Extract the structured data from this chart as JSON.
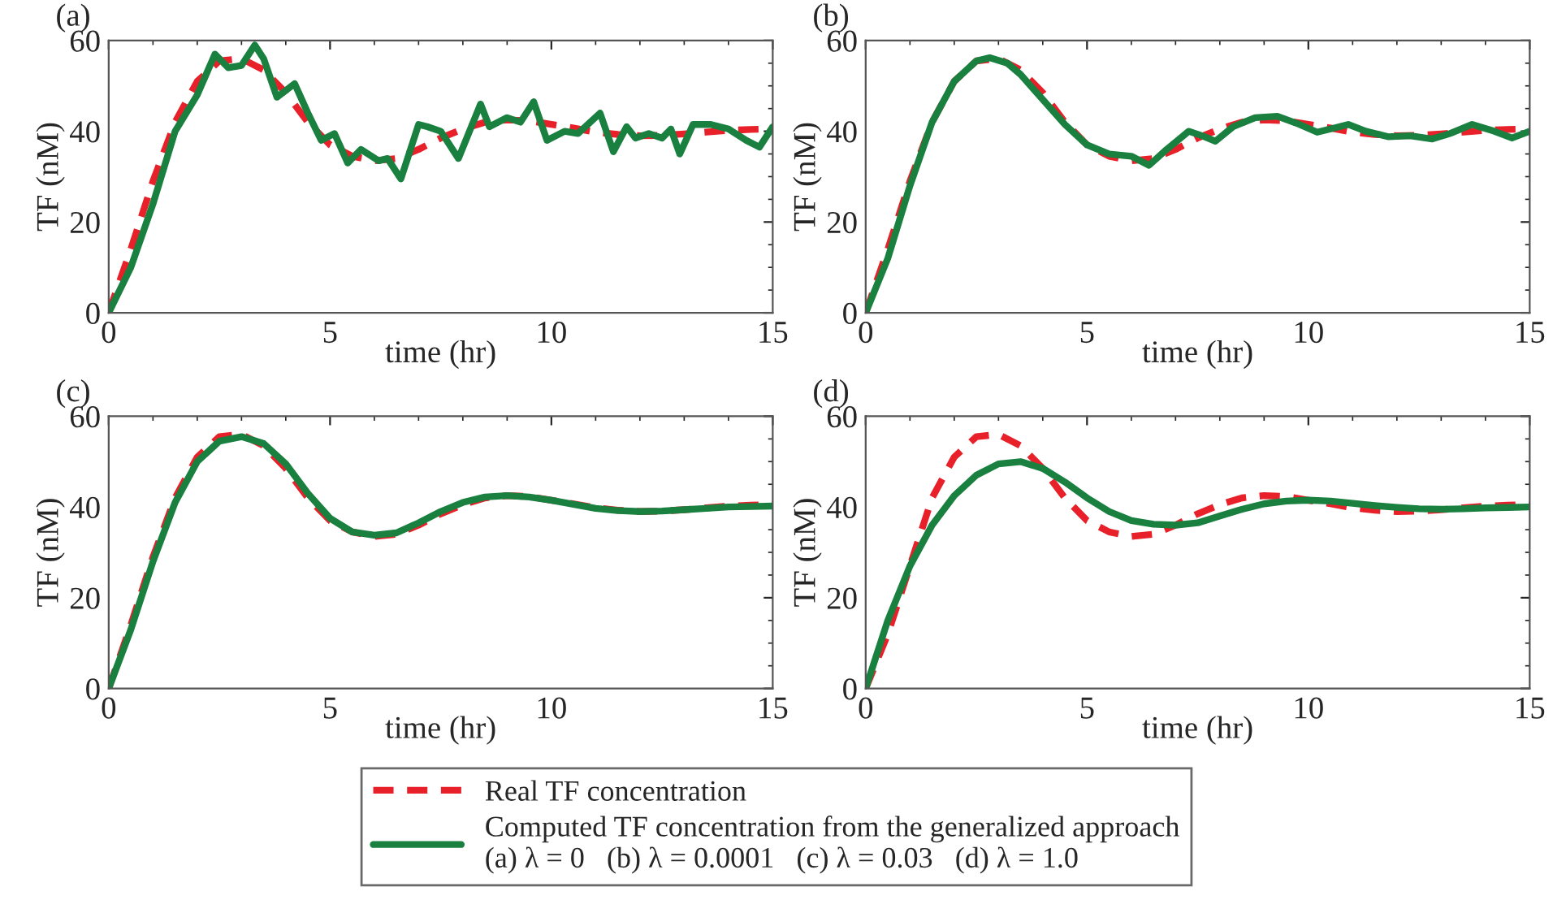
{
  "chart_data": [
    {
      "type": "line",
      "title": "(a)",
      "xlabel": "time (hr)",
      "ylabel": "TF (nM)",
      "xlim": [
        0,
        15
      ],
      "ylim": [
        0,
        60
      ],
      "xticks": [
        0,
        5,
        10,
        15
      ],
      "yticks": [
        0,
        20,
        40,
        60
      ],
      "grid": false,
      "legend": "bottom",
      "series": [
        {
          "name": "Real TF concentration",
          "color": "#e8202a",
          "line_style": "dashed",
          "x": [
            0,
            0.5,
            1,
            1.5,
            2,
            2.5,
            3,
            3.5,
            4,
            4.5,
            5,
            5.5,
            6,
            6.5,
            7,
            7.5,
            8,
            8.5,
            9,
            9.5,
            10,
            10.5,
            11,
            11.5,
            12,
            12.5,
            13,
            13.5,
            14,
            14.5,
            15
          ],
          "values": [
            0,
            14,
            29,
            42,
            51,
            55.5,
            56,
            53.5,
            48.5,
            42,
            37,
            34.5,
            33.5,
            34,
            36,
            38.5,
            40.5,
            42,
            42.5,
            42.3,
            41.5,
            40.7,
            39.8,
            39.3,
            39,
            39.1,
            39.4,
            39.8,
            40.2,
            40.4,
            40.5
          ]
        },
        {
          "name": "Computed TF concentration from the generalized approach\n(a) λ = 0   (b) λ = 0.0001   (c) λ = 0.03   (d) λ = 1.0",
          "color": "#1a8040",
          "line_style": "solid",
          "x": [
            0,
            0.5,
            1,
            1.5,
            2,
            2.4,
            2.7,
            3.0,
            3.3,
            3.5,
            3.8,
            4.2,
            4.5,
            4.8,
            5.1,
            5.4,
            5.7,
            6.1,
            6.3,
            6.6,
            7.0,
            7.2,
            7.5,
            7.9,
            8.4,
            8.6,
            9.0,
            9.3,
            9.6,
            9.9,
            10.3,
            10.6,
            11.1,
            11.4,
            11.7,
            11.9,
            12.2,
            12.5,
            12.7,
            12.9,
            13.2,
            13.6,
            14.0,
            14.4,
            14.7,
            15
          ],
          "values": [
            0,
            10,
            24,
            40,
            48,
            57,
            54,
            54.5,
            59,
            56,
            47.5,
            50.5,
            44,
            38,
            39.5,
            33,
            36,
            33.5,
            34,
            29.5,
            41.5,
            41,
            40,
            34,
            46,
            41,
            43,
            42,
            46.5,
            38,
            40,
            39.5,
            44,
            35.5,
            41,
            38.5,
            39.5,
            38.5,
            40.5,
            35,
            41.5,
            41.5,
            40.5,
            38,
            36.5,
            41
          ]
        }
      ]
    },
    {
      "type": "line",
      "title": "(b)",
      "xlabel": "time (hr)",
      "ylabel": "TF (nM)",
      "xlim": [
        0,
        15
      ],
      "ylim": [
        0,
        60
      ],
      "xticks": [
        0,
        5,
        10,
        15
      ],
      "yticks": [
        0,
        20,
        40,
        60
      ],
      "grid": false,
      "series": [
        {
          "color": "#e8202a",
          "line_style": "dashed",
          "x": [
            0,
            0.5,
            1,
            1.5,
            2,
            2.5,
            3,
            3.5,
            4,
            4.5,
            5,
            5.5,
            6,
            6.5,
            7,
            7.5,
            8,
            8.5,
            9,
            9.5,
            10,
            10.5,
            11,
            11.5,
            12,
            12.5,
            13,
            13.5,
            14,
            14.5,
            15
          ],
          "values": [
            0,
            14,
            29,
            42,
            51,
            55.5,
            56,
            53.5,
            48.5,
            42,
            37,
            34.5,
            33.5,
            34,
            36,
            38.5,
            40.5,
            42,
            42.5,
            42.3,
            41.5,
            40.7,
            39.8,
            39.3,
            39,
            39.1,
            39.4,
            39.8,
            40.2,
            40.4,
            40.5
          ]
        },
        {
          "color": "#1a8040",
          "line_style": "solid",
          "x": [
            0,
            0.5,
            1,
            1.5,
            2,
            2.5,
            2.8,
            3.2,
            3.5,
            4,
            4.5,
            5,
            5.5,
            6,
            6.4,
            6.8,
            7.3,
            7.6,
            7.9,
            8.3,
            8.8,
            9.3,
            9.8,
            10.2,
            10.5,
            10.9,
            11.3,
            11.8,
            12.3,
            12.8,
            13.2,
            13.7,
            14.2,
            14.6,
            15
          ],
          "values": [
            0,
            12,
            28,
            42,
            51,
            55.5,
            56.2,
            55,
            52.5,
            47,
            41.5,
            37,
            35,
            34.5,
            32.5,
            36,
            40,
            39,
            37.8,
            41,
            43,
            43.3,
            41.5,
            39.8,
            40.5,
            41.5,
            40,
            38.8,
            39,
            38.3,
            39.5,
            41.5,
            40,
            38.5,
            40
          ]
        }
      ]
    },
    {
      "type": "line",
      "title": "(c)",
      "xlabel": "time (hr)",
      "ylabel": "TF (nM)",
      "xlim": [
        0,
        15
      ],
      "ylim": [
        0,
        60
      ],
      "xticks": [
        0,
        5,
        10,
        15
      ],
      "yticks": [
        0,
        20,
        40,
        60
      ],
      "grid": false,
      "series": [
        {
          "color": "#e8202a",
          "line_style": "dashed",
          "x": [
            0,
            0.5,
            1,
            1.5,
            2,
            2.5,
            3,
            3.5,
            4,
            4.5,
            5,
            5.5,
            6,
            6.5,
            7,
            7.5,
            8,
            8.5,
            9,
            9.5,
            10,
            10.5,
            11,
            11.5,
            12,
            12.5,
            13,
            13.5,
            14,
            14.5,
            15
          ],
          "values": [
            0,
            14,
            29,
            42,
            51,
            55.5,
            56,
            53.5,
            48.5,
            42,
            37,
            34.5,
            33.5,
            34,
            36,
            38.5,
            40.5,
            42,
            42.5,
            42.3,
            41.5,
            40.7,
            39.8,
            39.3,
            39,
            39.1,
            39.4,
            39.8,
            40.2,
            40.4,
            40.5
          ]
        },
        {
          "color": "#1a8040",
          "line_style": "solid",
          "x": [
            0,
            0.5,
            1,
            1.5,
            2,
            2.5,
            3,
            3.5,
            4,
            4.5,
            5,
            5.5,
            6,
            6.5,
            7,
            7.5,
            8,
            8.5,
            9,
            9.5,
            10,
            10.5,
            11,
            11.5,
            12,
            12.5,
            13,
            13.5,
            14,
            14.5,
            15
          ],
          "values": [
            0,
            13,
            28,
            41,
            50,
            54.5,
            55.5,
            54,
            49.5,
            43,
            37.5,
            34.5,
            33.8,
            34.3,
            36.5,
            39,
            41,
            42.2,
            42.5,
            42.2,
            41.5,
            40.6,
            39.7,
            39.2,
            39,
            39.1,
            39.4,
            39.7,
            40,
            40.1,
            40.2
          ]
        }
      ]
    },
    {
      "type": "line",
      "title": "(d)",
      "xlabel": "time (hr)",
      "ylabel": "TF (nM)",
      "xlim": [
        0,
        15
      ],
      "ylim": [
        0,
        60
      ],
      "xticks": [
        0,
        5,
        10,
        15
      ],
      "yticks": [
        0,
        20,
        40,
        60
      ],
      "grid": false,
      "series": [
        {
          "color": "#e8202a",
          "line_style": "dashed",
          "x": [
            0,
            0.5,
            1,
            1.5,
            2,
            2.5,
            3,
            3.5,
            4,
            4.5,
            5,
            5.5,
            6,
            6.5,
            7,
            7.5,
            8,
            8.5,
            9,
            9.5,
            10,
            10.5,
            11,
            11.5,
            12,
            12.5,
            13,
            13.5,
            14,
            14.5,
            15
          ],
          "values": [
            0,
            12,
            27,
            42,
            51,
            55.5,
            56,
            53.5,
            48.5,
            42,
            37,
            34.5,
            33.5,
            34,
            36,
            38.5,
            40.5,
            42,
            42.5,
            42.3,
            41.5,
            40.7,
            39.8,
            39.3,
            39,
            39.1,
            39.4,
            39.8,
            40.2,
            40.4,
            40.5
          ]
        },
        {
          "color": "#1a8040",
          "line_style": "solid",
          "x": [
            0,
            0.5,
            1,
            1.5,
            2,
            2.5,
            3,
            3.5,
            4,
            4.5,
            5,
            5.5,
            6,
            6.5,
            7,
            7.5,
            8,
            8.5,
            9,
            9.5,
            10,
            10.5,
            11,
            11.5,
            12,
            12.5,
            13,
            13.5,
            14,
            14.5,
            15
          ],
          "values": [
            0,
            15,
            27,
            36,
            42.5,
            47,
            49.5,
            50,
            48.5,
            45.5,
            42,
            39,
            37,
            36.2,
            36,
            36.5,
            38,
            39.5,
            40.7,
            41.3,
            41.5,
            41.3,
            40.8,
            40.3,
            39.9,
            39.6,
            39.5,
            39.6,
            39.8,
            39.9,
            40
          ]
        }
      ]
    }
  ]
}
